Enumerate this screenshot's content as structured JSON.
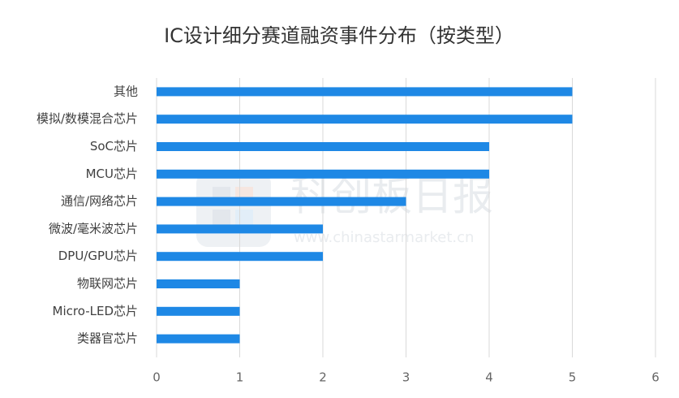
{
  "chart_data": {
    "type": "bar",
    "orientation": "horizontal",
    "title": "IC设计细分赛道融资事件分布（按类型）",
    "categories": [
      "其他",
      "模拟/数模混合芯片",
      "SoC芯片",
      "MCU芯片",
      "通信/网络芯片",
      "微波/毫米波芯片",
      "DPU/GPU芯片",
      "物联网芯片",
      "Micro-LED芯片",
      "类器官芯片"
    ],
    "values": [
      5,
      5,
      4,
      4,
      3,
      2,
      2,
      1,
      1,
      1
    ],
    "color": "#1e88e5",
    "xlim": [
      0,
      6
    ],
    "xticks": [
      0,
      1,
      2,
      3,
      4,
      5,
      6
    ],
    "grid": true,
    "watermark": {
      "name": "科创板日报",
      "url": "www.chinastarmarket.cn"
    }
  }
}
